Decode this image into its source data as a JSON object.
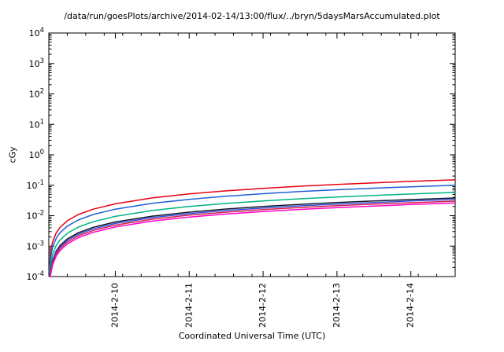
{
  "window": {
    "background": "#ffffff"
  },
  "chart_data": {
    "type": "line",
    "title": "/data/run/goesPlots/archive/2014-02-14/13:00/flux/../bryn/5daysMarsAccumulated.plot",
    "xlabel": "Coordinated Universal Time (UTC)",
    "ylabel": "cGy",
    "grid": false,
    "legend": "none",
    "x_axis": {
      "unit": "days-from-window-start",
      "range": [
        0,
        5.5
      ],
      "major_ticks": [
        {
          "t": 0.9,
          "label": "2014-2-10"
        },
        {
          "t": 1.9,
          "label": "2014-2-11"
        },
        {
          "t": 2.9,
          "label": "2014-2-12"
        },
        {
          "t": 3.9,
          "label": "2014-2-13"
        },
        {
          "t": 4.9,
          "label": "2014-2-14"
        }
      ],
      "minor_tick_step": 0.25,
      "tick_label_rotation_deg": -90
    },
    "y_axis": {
      "scale": "log10",
      "range_exponents": [
        -4,
        4
      ],
      "tick_exponents": [
        -4,
        -3,
        -2,
        -1,
        0,
        1,
        2,
        3,
        4
      ],
      "tick_base": "10"
    },
    "x": [
      0.005,
      0.02,
      0.05,
      0.1,
      0.15,
      0.25,
      0.4,
      0.6,
      0.9,
      1.4,
      1.9,
      2.4,
      2.9,
      3.4,
      3.9,
      4.4,
      4.9,
      5.5
    ],
    "series": [
      {
        "name": "red",
        "color": "#e60012",
        "values": [
          0.000136,
          0.000545,
          0.00136,
          0.00273,
          0.00409,
          0.00682,
          0.0109,
          0.0164,
          0.0245,
          0.0382,
          0.0518,
          0.0655,
          0.0791,
          0.0927,
          0.106,
          0.12,
          0.134,
          0.15
        ]
      },
      {
        "name": "blue",
        "color": "#1f5fd6",
        "values": [
          9.09e-05,
          0.000364,
          0.000909,
          0.00182,
          0.00273,
          0.00455,
          0.00727,
          0.0109,
          0.0164,
          0.0255,
          0.0345,
          0.0436,
          0.0527,
          0.0618,
          0.0709,
          0.08,
          0.0891,
          0.1
        ]
      },
      {
        "name": "teal",
        "color": "#00b386",
        "values": [
          5.27e-05,
          0.000211,
          0.000527,
          0.00105,
          0.00158,
          0.00264,
          0.00422,
          0.00633,
          0.00949,
          0.0148,
          0.02,
          0.0253,
          0.0306,
          0.0359,
          0.0411,
          0.0464,
          0.0517,
          0.058
        ]
      },
      {
        "name": "black",
        "color": "#15152a",
        "values": [
          3.45e-05,
          0.000138,
          0.000345,
          0.000691,
          0.00104,
          0.00173,
          0.00276,
          0.00415,
          0.00622,
          0.00967,
          0.0131,
          0.0166,
          0.02,
          0.0235,
          0.0269,
          0.0304,
          0.0339,
          0.038
        ]
      },
      {
        "name": "navy",
        "color": "#3350e0",
        "values": [
          3.09e-05,
          0.000124,
          0.000309,
          0.000618,
          0.000927,
          0.00155,
          0.00247,
          0.00371,
          0.00556,
          0.00865,
          0.0117,
          0.0148,
          0.0179,
          0.021,
          0.0241,
          0.0272,
          0.0303,
          0.034
        ]
      },
      {
        "name": "crimson",
        "color": "#d42045",
        "values": [
          2.73e-05,
          0.000109,
          0.000273,
          0.000545,
          0.000818,
          0.00136,
          0.00218,
          0.00327,
          0.00491,
          0.00764,
          0.0104,
          0.0131,
          0.0158,
          0.0185,
          0.0213,
          0.024,
          0.0267,
          0.03
        ]
      },
      {
        "name": "magenta",
        "color": "#ff00cc",
        "values": [
          2.36e-05,
          9.45e-05,
          0.000236,
          0.000473,
          0.000709,
          0.00118,
          0.00189,
          0.00284,
          0.00425,
          0.00662,
          0.00898,
          0.0113,
          0.0137,
          0.0161,
          0.0184,
          0.0208,
          0.0232,
          0.026
        ]
      }
    ]
  }
}
